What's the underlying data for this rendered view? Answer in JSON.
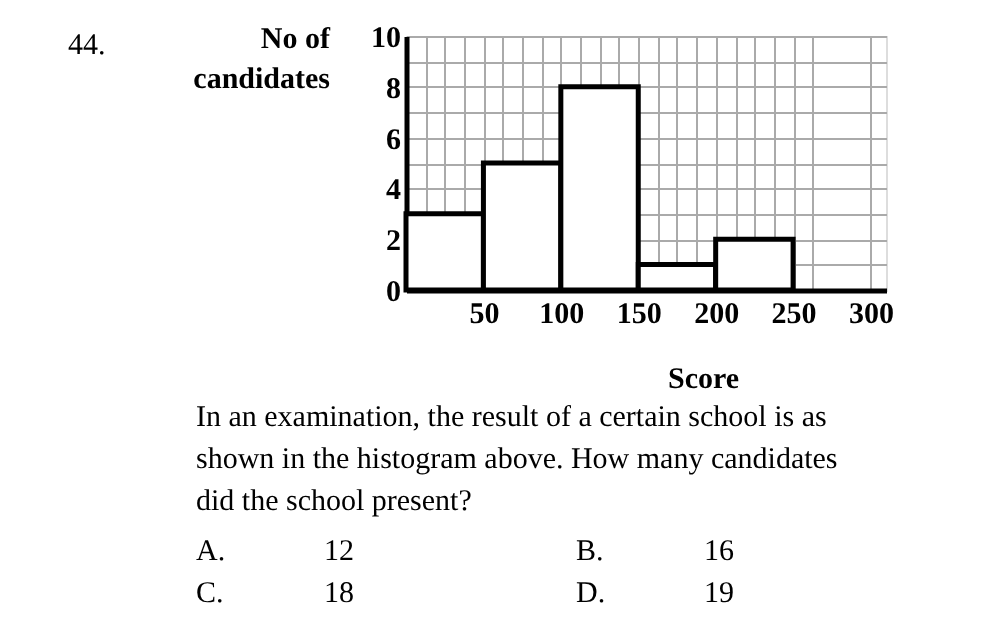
{
  "chart_data": {
    "type": "histogram",
    "xlabel": "Score",
    "ylabel": "No of candidates",
    "bins": [
      0,
      50,
      100,
      150,
      200,
      250
    ],
    "values": [
      3,
      5,
      8,
      1,
      2
    ],
    "color": "#000000",
    "xlim": [
      0,
      310
    ],
    "xticks": [
      {
        "value": 0,
        "label": null
      },
      {
        "value": 12.5,
        "label": null
      },
      {
        "value": 25,
        "label": null
      },
      {
        "value": 37.5,
        "label": null
      },
      50,
      {
        "value": 62.5,
        "label": null
      },
      {
        "value": 75,
        "label": null
      },
      {
        "value": 87.5,
        "label": null
      },
      100,
      {
        "value": 112.5,
        "label": null
      },
      {
        "value": 125,
        "label": null
      },
      {
        "value": 137.5,
        "label": null
      },
      150,
      {
        "value": 162.5,
        "label": null
      },
      {
        "value": 175,
        "label": null
      },
      {
        "value": 187.5,
        "label": null
      },
      200,
      {
        "value": 212.5,
        "label": null
      },
      {
        "value": 225,
        "label": null
      },
      {
        "value": 237.5,
        "label": null
      },
      250,
      {
        "value": 262.5,
        "label": null
      },
      300
    ],
    "ylim": [
      0,
      10
    ],
    "yticks": [
      0,
      {
        "value": 1,
        "label": null
      },
      2,
      {
        "value": 3,
        "label": null
      },
      4,
      {
        "value": 5,
        "label": null
      },
      6,
      {
        "value": 7,
        "label": null
      },
      8,
      {
        "value": 9,
        "label": null
      },
      10
    ],
    "grid": true,
    "annotations": [
      "44.",
      "In an examination, the result of a certain school is as",
      "shown in the histogram above. How many candidates",
      "did the school present?",
      "A.",
      "12",
      "B.",
      "16",
      "C.",
      "18",
      "D.",
      "19"
    ]
  }
}
